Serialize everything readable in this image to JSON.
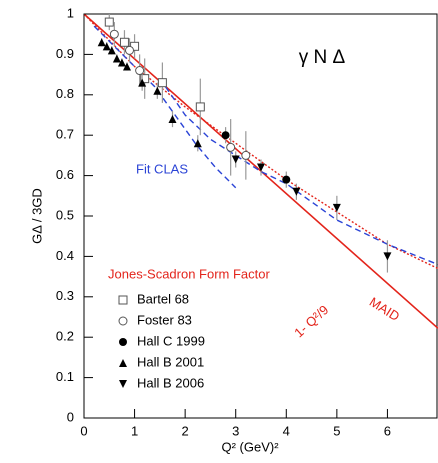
{
  "chart_data": {
    "type": "scatter",
    "title": "γ N Δ",
    "xlabel": "Q² (GeV)²",
    "ylabel": "GΔ / 3GD",
    "xlim": [
      0,
      7
    ],
    "ylim": [
      0,
      1
    ],
    "xticks": [
      0,
      1,
      2,
      3,
      4,
      5,
      6
    ],
    "yticks": [
      0,
      0.1,
      0.2,
      0.3,
      0.4,
      0.5,
      0.6,
      0.7,
      0.8,
      0.9,
      1
    ],
    "annotation": "Jones-Scadron Form Factor",
    "curves": [
      {
        "label": "1- Q²/9",
        "color": "#e3241b",
        "style": "solid",
        "x": [
          0,
          7
        ],
        "values": [
          1,
          0.222
        ]
      },
      {
        "label": "MAID",
        "color": "#e3241b",
        "style": "dotted",
        "x": [
          0,
          1,
          2,
          3,
          4,
          5,
          6,
          7
        ],
        "values": [
          1,
          0.87,
          0.77,
          0.68,
          0.59,
          0.51,
          0.43,
          0.37
        ]
      },
      {
        "label": "Fit CLAS",
        "color": "#2b44d6",
        "style": "dashed",
        "x": [
          0.2,
          0.6,
          1.0,
          1.4,
          1.8,
          2.2,
          2.6,
          3.0,
          null,
          1.5,
          2.0,
          2.5,
          3.0,
          3.5,
          4.0,
          5.0,
          6.0,
          7.0
        ],
        "values": [
          0.97,
          0.92,
          0.87,
          0.82,
          0.75,
          0.68,
          0.62,
          0.57,
          null,
          0.84,
          0.75,
          0.69,
          0.65,
          0.61,
          0.58,
          0.49,
          0.43,
          0.38
        ]
      }
    ],
    "series": [
      {
        "name": "Bartel 68",
        "marker": "square-open",
        "color": "#555555",
        "x": [
          0.5,
          0.8,
          1.0,
          1.2,
          1.55,
          2.3
        ],
        "values": [
          0.98,
          0.93,
          0.92,
          0.84,
          0.83,
          0.77
        ],
        "errors": [
          0.02,
          0.03,
          0.03,
          0.05,
          0.05,
          0.07
        ]
      },
      {
        "name": "Foster 83",
        "marker": "circle-open",
        "color": "#555555",
        "x": [
          0.6,
          0.9,
          1.1,
          2.9,
          3.2
        ],
        "values": [
          0.95,
          0.91,
          0.86,
          0.67,
          0.65
        ],
        "errors": [
          0.03,
          0.03,
          0.04,
          0.07,
          0.06
        ]
      },
      {
        "name": "Hall C 1999",
        "marker": "circle",
        "color": "#000000",
        "x": [
          2.8,
          4.0
        ],
        "values": [
          0.7,
          0.59
        ],
        "errors": [
          0.02,
          0.02
        ]
      },
      {
        "name": "Hall B 2001",
        "marker": "triangle-up",
        "color": "#000000",
        "x": [
          0.35,
          0.45,
          0.55,
          0.65,
          0.75,
          0.85,
          1.15,
          1.45,
          1.75,
          2.25
        ],
        "values": [
          0.93,
          0.92,
          0.91,
          0.89,
          0.88,
          0.87,
          0.83,
          0.81,
          0.74,
          0.68
        ],
        "errors": [
          0.01,
          0.01,
          0.01,
          0.01,
          0.01,
          0.01,
          0.02,
          0.02,
          0.02,
          0.02
        ]
      },
      {
        "name": "Hall B 2006",
        "marker": "triangle-down",
        "color": "#000000",
        "x": [
          3.0,
          3.5,
          4.2,
          5.0,
          6.0
        ],
        "values": [
          0.64,
          0.62,
          0.56,
          0.52,
          0.4
        ],
        "errors": [
          0.02,
          0.02,
          0.02,
          0.03,
          0.04
        ]
      }
    ]
  }
}
